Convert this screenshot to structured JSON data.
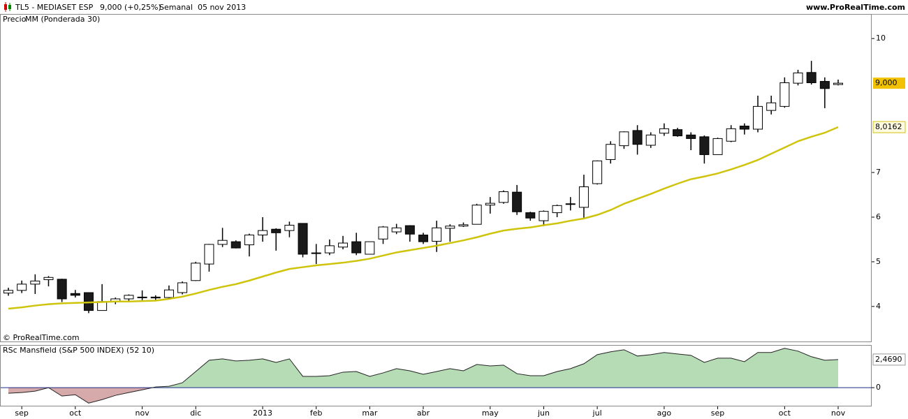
{
  "header": {
    "symbol": "TL5 - MEDIASET ESP",
    "quote": "9,000 (+0,25%)",
    "period": "Semanal  05 nov 2013",
    "site": "www.ProRealTime.com"
  },
  "watermark": "© ProRealTime.com",
  "chart_data": [
    {
      "type": "candlestick",
      "legend_label": "Precio",
      "categories": [
        null,
        "sep",
        null,
        null,
        null,
        "oct",
        null,
        null,
        null,
        null,
        "nov",
        null,
        null,
        null,
        "dic",
        null,
        null,
        null,
        null,
        "2013",
        null,
        null,
        null,
        "feb",
        null,
        null,
        null,
        "mar",
        null,
        null,
        null,
        "abr",
        null,
        null,
        null,
        null,
        "may",
        null,
        null,
        null,
        "jun",
        null,
        null,
        null,
        "jul",
        null,
        null,
        null,
        null,
        "ago",
        null,
        null,
        null,
        "sep",
        null,
        null,
        null,
        null,
        "oct",
        null,
        null,
        null,
        "nov"
      ],
      "open": [
        4.3,
        4.36,
        4.5,
        4.6,
        4.61,
        4.29,
        4.31,
        3.91,
        4.11,
        4.17,
        4.21,
        4.21,
        4.2,
        4.31,
        4.58,
        4.95,
        5.39,
        5.45,
        5.38,
        5.6,
        5.73,
        5.7,
        5.86,
        5.2,
        5.2,
        5.33,
        5.45,
        5.17,
        5.51,
        5.67,
        5.81,
        5.6,
        5.46,
        5.75,
        5.8,
        5.84,
        6.27,
        6.33,
        6.56,
        6.1,
        5.92,
        6.1,
        6.3,
        6.22,
        6.75,
        7.29,
        7.6,
        7.94,
        7.61,
        7.88,
        7.96,
        7.84,
        7.8,
        7.4,
        7.7,
        8.04,
        7.97,
        8.39,
        8.48,
        9.0,
        9.24,
        9.04,
        8.97
      ],
      "high": [
        4.42,
        4.58,
        4.72,
        4.68,
        4.62,
        4.37,
        4.31,
        4.5,
        4.2,
        4.27,
        4.36,
        4.25,
        4.47,
        4.56,
        5.0,
        5.4,
        5.76,
        5.48,
        5.63,
        6.0,
        5.75,
        5.9,
        5.86,
        5.4,
        5.5,
        5.58,
        5.65,
        5.45,
        5.8,
        5.85,
        5.82,
        5.65,
        5.92,
        5.84,
        5.88,
        6.3,
        6.45,
        6.6,
        6.72,
        6.12,
        6.15,
        6.28,
        6.45,
        6.95,
        7.27,
        7.7,
        7.92,
        8.06,
        7.9,
        8.1,
        8.0,
        7.9,
        7.83,
        7.78,
        8.06,
        8.1,
        8.72,
        8.72,
        9.13,
        9.3,
        9.5,
        9.13,
        9.08
      ],
      "low": [
        4.24,
        4.3,
        4.28,
        4.45,
        4.1,
        4.2,
        3.85,
        3.91,
        4.05,
        4.12,
        4.14,
        4.12,
        4.16,
        4.27,
        4.57,
        4.78,
        5.33,
        5.3,
        5.12,
        5.45,
        5.25,
        5.55,
        5.1,
        4.95,
        5.15,
        5.28,
        5.15,
        5.17,
        5.4,
        5.62,
        5.45,
        5.4,
        5.22,
        5.45,
        5.78,
        5.84,
        6.08,
        6.3,
        6.05,
        5.92,
        5.8,
        6.0,
        6.15,
        5.97,
        6.73,
        7.2,
        7.53,
        7.4,
        7.55,
        7.82,
        7.8,
        7.5,
        7.2,
        7.4,
        7.68,
        7.85,
        7.9,
        8.3,
        8.45,
        8.95,
        8.97,
        8.44,
        8.95
      ],
      "close": [
        4.36,
        4.5,
        4.57,
        4.65,
        4.17,
        4.25,
        3.91,
        4.11,
        4.17,
        4.25,
        4.2,
        4.19,
        4.37,
        4.53,
        4.97,
        5.39,
        5.48,
        5.31,
        5.6,
        5.7,
        5.65,
        5.82,
        5.17,
        5.19,
        5.36,
        5.42,
        5.2,
        5.45,
        5.78,
        5.76,
        5.62,
        5.45,
        5.76,
        5.8,
        5.83,
        6.27,
        6.31,
        6.57,
        6.12,
        5.98,
        6.13,
        6.26,
        6.29,
        6.68,
        7.26,
        7.63,
        7.91,
        7.63,
        7.84,
        7.98,
        7.82,
        7.76,
        7.4,
        7.76,
        7.98,
        7.97,
        8.48,
        8.56,
        9.01,
        9.23,
        9.01,
        8.88,
        9.0
      ],
      "up_color": "#ffffff",
      "down_color": "#1a1a1a",
      "price_tag": {
        "value": 9.0,
        "label": "9,000"
      },
      "series": [
        {
          "name": "MM (Ponderada 30)",
          "color": "#cfc40c",
          "values": [
            3.95,
            3.98,
            4.02,
            4.05,
            4.07,
            4.08,
            4.09,
            4.1,
            4.11,
            4.11,
            4.12,
            4.13,
            4.17,
            4.22,
            4.29,
            4.37,
            4.44,
            4.5,
            4.58,
            4.67,
            4.76,
            4.84,
            4.88,
            4.92,
            4.95,
            4.98,
            5.02,
            5.07,
            5.14,
            5.21,
            5.26,
            5.31,
            5.36,
            5.42,
            5.48,
            5.55,
            5.63,
            5.7,
            5.74,
            5.77,
            5.82,
            5.86,
            5.92,
            5.97,
            6.05,
            6.16,
            6.3,
            6.41,
            6.52,
            6.64,
            6.75,
            6.85,
            6.91,
            6.98,
            7.07,
            7.17,
            7.28,
            7.42,
            7.56,
            7.7,
            7.8,
            7.89,
            8.0162
          ],
          "tag": {
            "value": 8.0162,
            "label": "8,0162"
          }
        }
      ],
      "ylim": [
        3.2,
        10.55
      ],
      "yticks": [
        4,
        5,
        6,
        7,
        10
      ]
    },
    {
      "type": "area",
      "title": "RSc Mansfield (S&P 500 INDEX) (52 10)",
      "values": [
        -0.49,
        -0.43,
        -0.31,
        0,
        -0.74,
        -0.62,
        -1.36,
        -1.05,
        -0.68,
        -0.43,
        -0.19,
        0.06,
        0.12,
        0.43,
        1.42,
        2.41,
        2.53,
        2.35,
        2.41,
        2.53,
        2.22,
        2.53,
        0.99,
        0.99,
        1.05,
        1.36,
        1.42,
        0.99,
        1.3,
        1.67,
        1.48,
        1.17,
        1.42,
        1.67,
        1.48,
        2.04,
        1.91,
        1.98,
        1.23,
        1.05,
        1.05,
        1.42,
        1.67,
        2.1,
        2.9,
        3.15,
        3.33,
        2.78,
        2.9,
        3.09,
        2.96,
        2.84,
        2.22,
        2.59,
        2.59,
        2.28,
        3.09,
        3.09,
        3.46,
        3.21,
        2.72,
        2.41,
        2.469
      ],
      "positive_color": "#b6dcb6",
      "negative_color": "#d6a9aa",
      "line_color": "#222222",
      "zero_color": "#1f2a8a",
      "tag": {
        "value": 2.469,
        "label": "2,4690"
      },
      "ylim": [
        -1.65,
        3.75
      ],
      "yticks": [
        0
      ]
    }
  ]
}
